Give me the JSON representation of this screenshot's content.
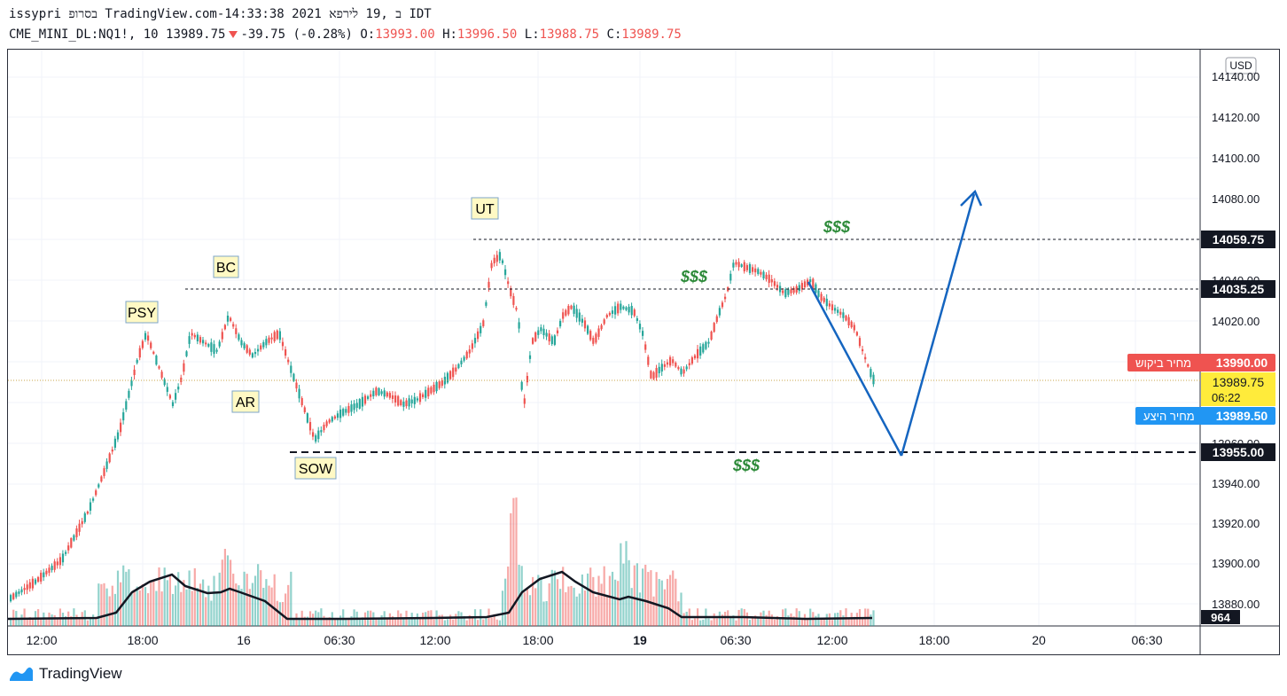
{
  "header": {
    "line1": "issypri בסרופ TradingView.com-ב ,19 לירפא 2021 14:33:38 IDT",
    "symbol": "CME_MINI_DL:NQ1!, 10",
    "last": "13989.75",
    "change": "-39.75 (-0.28%)",
    "open_label": "O:",
    "open": "13993.00",
    "high_label": "H:",
    "high": "13996.50",
    "low_label": "L:",
    "low": "13988.75",
    "close_label": "C:",
    "close": "13989.75"
  },
  "price_axis": {
    "currency": "USD",
    "ticks": [
      "14140.00",
      "14120.00",
      "14100.00",
      "14080.00",
      "14040.00",
      "14020.00",
      "13960.00",
      "13940.00",
      "13920.00",
      "13900.00",
      "13880.00"
    ],
    "level_labels": [
      {
        "text": "14059.75",
        "bg": "#131722",
        "fg": "#ffffff"
      },
      {
        "text": "14035.25",
        "bg": "#131722",
        "fg": "#ffffff"
      },
      {
        "text": "13955.00",
        "bg": "#131722",
        "fg": "#ffffff"
      },
      {
        "text": "964",
        "bg": "#131722",
        "fg": "#ffffff"
      }
    ],
    "ask": {
      "label": "מחיר ביקוש",
      "value": "13990.00",
      "color": "#ef5350"
    },
    "bid": {
      "label": "מחיר היצע",
      "value": "13989.50",
      "color": "#2196f3"
    },
    "last": {
      "value": "13989.75",
      "countdown": "06:22",
      "color": "#ffeb3b"
    }
  },
  "time_axis": [
    "12:00",
    "18:00",
    "16",
    "06:30",
    "12:00",
    "18:00",
    "19",
    "06:30",
    "12:00",
    "18:00",
    "20",
    "06:30"
  ],
  "annotations": {
    "psy": "PSY",
    "bc": "BC",
    "ar": "AR",
    "sow": "SOW",
    "ut": "UT",
    "dollar_top": "$$$",
    "dollar_mid": "$$$",
    "dollar_bottom": "$$$"
  },
  "colors": {
    "up": "#26a69a",
    "down": "#ef5350",
    "arrow": "#1565c0",
    "dollar": "#2e8b3a",
    "label_bg": "#fff9c4"
  },
  "footer": {
    "brand": "TradingView"
  }
}
